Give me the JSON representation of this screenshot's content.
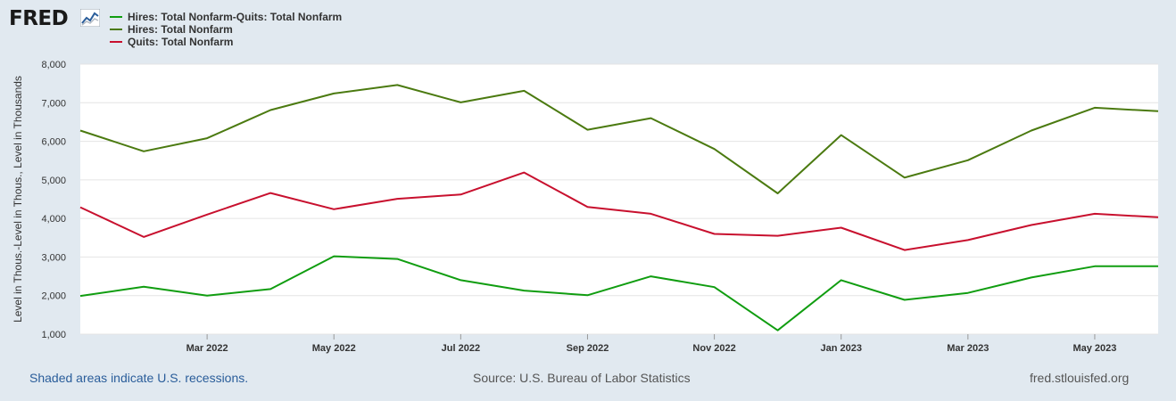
{
  "logo": {
    "text": "FRED"
  },
  "legend": [
    {
      "label": "Hires: Total Nonfarm-Quits: Total Nonfarm",
      "color": "#109d10"
    },
    {
      "label": "Hires: Total Nonfarm",
      "color": "#4b7a10"
    },
    {
      "label": "Quits: Total Nonfarm",
      "color": "#c8102e"
    }
  ],
  "footer": {
    "recessions": "Shaded areas indicate U.S. recessions.",
    "source": "Source: U.S. Bureau of Labor Statistics",
    "site": "fred.stlouisfed.org"
  },
  "chart_data": {
    "type": "line",
    "title": "",
    "ylabel": "Level in Thous.-Level in Thous., Level in Thousands",
    "xlabel": "",
    "ylim": [
      1000,
      8000
    ],
    "yticks": [
      "1,000",
      "2,000",
      "3,000",
      "4,000",
      "5,000",
      "6,000",
      "7,000",
      "8,000"
    ],
    "x": [
      "2022-01",
      "2022-02",
      "2022-03",
      "2022-04",
      "2022-05",
      "2022-06",
      "2022-07",
      "2022-08",
      "2022-09",
      "2022-10",
      "2022-11",
      "2022-12",
      "2023-01",
      "2023-02",
      "2023-03",
      "2023-04",
      "2023-05",
      "2023-06"
    ],
    "xticks": [
      {
        "label": "Mar 2022",
        "index": 2
      },
      {
        "label": "May 2022",
        "index": 4
      },
      {
        "label": "Jul 2022",
        "index": 6
      },
      {
        "label": "Sep 2022",
        "index": 8
      },
      {
        "label": "Nov 2022",
        "index": 10
      },
      {
        "label": "Jan 2023",
        "index": 12
      },
      {
        "label": "Mar 2023",
        "index": 14
      },
      {
        "label": "May 2023",
        "index": 16
      }
    ],
    "series": [
      {
        "name": "Hires: Total Nonfarm-Quits: Total Nonfarm",
        "color": "#109d10",
        "values": [
          1990,
          2230,
          2000,
          2170,
          3020,
          2950,
          2400,
          2130,
          2010,
          2500,
          2220,
          1100,
          2400,
          1890,
          2070,
          2470,
          2760,
          2760
        ]
      },
      {
        "name": "Hires: Total Nonfarm",
        "color": "#4b7a10",
        "values": [
          6280,
          5740,
          6080,
          6810,
          7240,
          7460,
          7010,
          7310,
          6300,
          6600,
          5800,
          4650,
          6160,
          5060,
          5510,
          6280,
          6870,
          6780
        ]
      },
      {
        "name": "Quits: Total Nonfarm",
        "color": "#c8102e",
        "values": [
          4290,
          3520,
          4100,
          4660,
          4240,
          4510,
          4620,
          5190,
          4300,
          4120,
          3600,
          3550,
          3760,
          3180,
          3440,
          3830,
          4120,
          4030
        ]
      }
    ]
  }
}
